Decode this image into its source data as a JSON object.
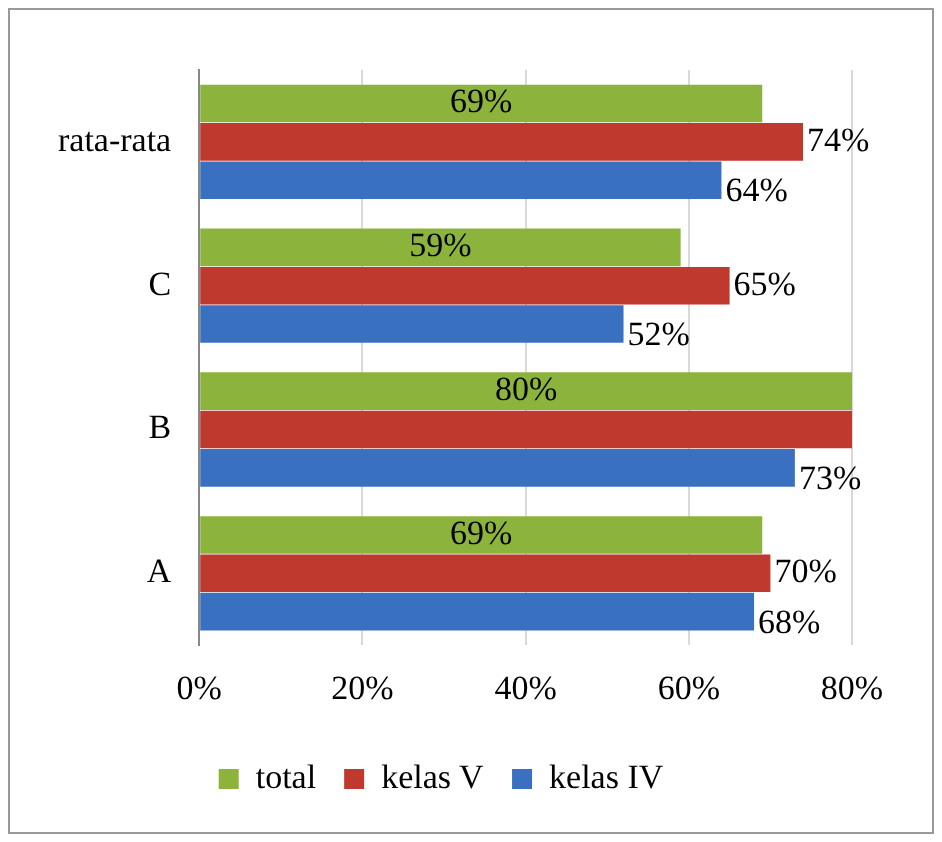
{
  "chart_data": {
    "type": "bar",
    "orientation": "horizontal",
    "categories": [
      "rata-rata",
      "C",
      "B",
      "A"
    ],
    "series": [
      {
        "name": "total",
        "color": "#8cb43c",
        "values": [
          69,
          59,
          80,
          69
        ],
        "value_labels": [
          "69%",
          "59%",
          "80%",
          "69%"
        ]
      },
      {
        "name": "kelas V",
        "color": "#c0392e",
        "values": [
          74,
          65,
          80,
          70
        ],
        "value_labels": [
          "74%",
          "65%",
          null,
          "70%"
        ]
      },
      {
        "name": "kelas IV",
        "color": "#3a70c0",
        "values": [
          64,
          52,
          73,
          68
        ],
        "value_labels": [
          "64%",
          "52%",
          "73%",
          "68%"
        ]
      }
    ],
    "xlim": [
      0,
      80
    ],
    "xticks": [
      {
        "value": 0,
        "label": "0%"
      },
      {
        "value": 20,
        "label": "20%"
      },
      {
        "value": 40,
        "label": "40%"
      },
      {
        "value": 60,
        "label": "60%"
      },
      {
        "value": 80,
        "label": "80%"
      }
    ],
    "grid": "x",
    "legend": "bottom"
  }
}
